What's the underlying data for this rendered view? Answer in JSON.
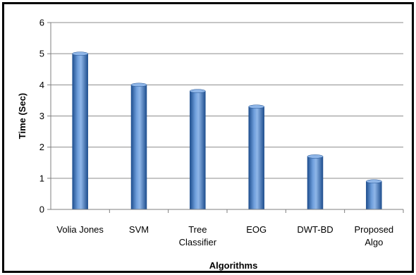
{
  "chart_data": {
    "type": "bar",
    "title": "",
    "xlabel": "Algorithms",
    "ylabel": "Time (Sec)",
    "ylim": [
      0,
      6
    ],
    "yticks": [
      0,
      1,
      2,
      3,
      4,
      5,
      6
    ],
    "grid": true,
    "legend": "none",
    "categories": [
      [
        "Volia Jones"
      ],
      [
        "SVM"
      ],
      [
        "Tree",
        "Classifier"
      ],
      [
        "EOG"
      ],
      [
        "DWT-BD"
      ],
      [
        "Proposed",
        "Algo"
      ]
    ],
    "values": [
      5.0,
      4.0,
      3.8,
      3.3,
      1.7,
      0.9
    ],
    "colors": {
      "bar_dark": "#1f4f8f",
      "bar_mid": "#4f86cc",
      "bar_light": "#8fb6e8",
      "grid": "#8c8c8c",
      "axis": "#7f7f7f"
    }
  }
}
